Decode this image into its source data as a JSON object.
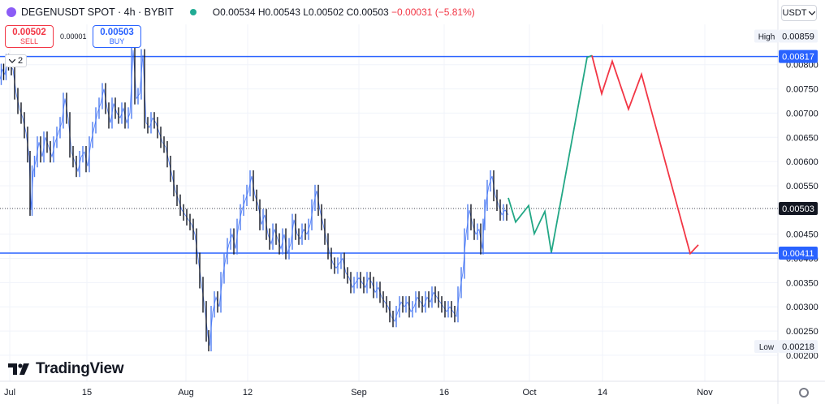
{
  "header": {
    "symbol": "DEGENUSDT SPOT · 4h · BYBIT",
    "ohlc_open": "O0.00534",
    "ohlc_high": "H0.00543",
    "ohlc_low": "L0.00502",
    "ohlc_close": "C0.00503",
    "ohlc_change": "−0.00031 (−5.81%)",
    "currency": "USDT",
    "symbol_icon": "degen-coin-icon",
    "status_icon": "market-open-dot-icon",
    "change_color": "#f23645"
  },
  "trade": {
    "sell_price": "0.00502",
    "sell_label": "SELL",
    "spread": "0.00001",
    "buy_price": "0.00503",
    "buy_label": "BUY"
  },
  "drawing_label": {
    "count": "2"
  },
  "branding": {
    "name": "TradingView"
  },
  "chart_data": {
    "type": "line",
    "description_series": "price",
    "x_ticks": [
      "Jul",
      "15",
      "Aug",
      "12",
      "Sep",
      "16",
      "Oct",
      "14",
      "Nov"
    ],
    "y_ticks": [
      "0.00800",
      "0.00750",
      "0.00700",
      "0.00650",
      "0.00600",
      "0.00550",
      "0.00450",
      "0.00400",
      "0.00350",
      "0.00300",
      "0.00250",
      "0.00200"
    ],
    "y_range": [
      0.0019,
      0.0089
    ],
    "price_labels": {
      "high_tag": "High",
      "high": "0.00859",
      "low_tag": "Low",
      "low": "0.00218",
      "resistance": "0.00817",
      "support": "0.00411",
      "last": "0.00503"
    },
    "horizontal_lines": [
      {
        "name": "resistance",
        "value": 0.00817,
        "color": "#2962ff"
      },
      {
        "name": "support",
        "value": 0.00411,
        "color": "#2962ff"
      }
    ],
    "last_price_line": {
      "value": 0.00503,
      "color": "#131722"
    },
    "price_path": [
      [
        0,
        0.0077
      ],
      [
        3,
        0.0079
      ],
      [
        6,
        0.0078
      ],
      [
        9,
        0.0081
      ],
      [
        12,
        0.008
      ],
      [
        16,
        0.0079
      ],
      [
        20,
        0.0074
      ],
      [
        24,
        0.0071
      ],
      [
        28,
        0.0069
      ],
      [
        32,
        0.0066
      ],
      [
        36,
        0.0061
      ],
      [
        38,
        0.005
      ],
      [
        41,
        0.0058
      ],
      [
        44,
        0.006
      ],
      [
        48,
        0.0064
      ],
      [
        52,
        0.0061
      ],
      [
        56,
        0.0065
      ],
      [
        60,
        0.0063
      ],
      [
        64,
        0.0061
      ],
      [
        68,
        0.0064
      ],
      [
        72,
        0.0066
      ],
      [
        76,
        0.0068
      ],
      [
        80,
        0.0073
      ],
      [
        84,
        0.0069
      ],
      [
        88,
        0.0062
      ],
      [
        92,
        0.006
      ],
      [
        96,
        0.0058
      ],
      [
        100,
        0.0061
      ],
      [
        104,
        0.0062
      ],
      [
        108,
        0.0059
      ],
      [
        112,
        0.0064
      ],
      [
        116,
        0.0067
      ],
      [
        120,
        0.007
      ],
      [
        124,
        0.0072
      ],
      [
        128,
        0.0075
      ],
      [
        132,
        0.0071
      ],
      [
        136,
        0.0068
      ],
      [
        140,
        0.0072
      ],
      [
        144,
        0.007
      ],
      [
        148,
        0.0069
      ],
      [
        152,
        0.0071
      ],
      [
        156,
        0.0068
      ],
      [
        160,
        0.007
      ],
      [
        164,
        0.0083
      ],
      [
        168,
        0.0073
      ],
      [
        172,
        0.0074
      ],
      [
        176,
        0.0082
      ],
      [
        180,
        0.0068
      ],
      [
        184,
        0.0067
      ],
      [
        188,
        0.0069
      ],
      [
        192,
        0.0068
      ],
      [
        196,
        0.0066
      ],
      [
        200,
        0.0064
      ],
      [
        204,
        0.0063
      ],
      [
        208,
        0.006
      ],
      [
        212,
        0.0057
      ],
      [
        216,
        0.0054
      ],
      [
        220,
        0.0052
      ],
      [
        224,
        0.005
      ],
      [
        228,
        0.0049
      ],
      [
        232,
        0.0048
      ],
      [
        236,
        0.0047
      ],
      [
        240,
        0.0045
      ],
      [
        244,
        0.004
      ],
      [
        248,
        0.0035
      ],
      [
        252,
        0.003
      ],
      [
        256,
        0.0024
      ],
      [
        258,
        0.0022
      ],
      [
        262,
        0.0029
      ],
      [
        266,
        0.0032
      ],
      [
        270,
        0.003
      ],
      [
        274,
        0.0036
      ],
      [
        278,
        0.004
      ],
      [
        282,
        0.0043
      ],
      [
        286,
        0.0045
      ],
      [
        290,
        0.0042
      ],
      [
        294,
        0.0047
      ],
      [
        298,
        0.005
      ],
      [
        302,
        0.0052
      ],
      [
        306,
        0.0054
      ],
      [
        310,
        0.0057
      ],
      [
        314,
        0.0053
      ],
      [
        318,
        0.0051
      ],
      [
        322,
        0.0047
      ],
      [
        326,
        0.0049
      ],
      [
        330,
        0.0045
      ],
      [
        334,
        0.0043
      ],
      [
        338,
        0.0046
      ],
      [
        342,
        0.0044
      ],
      [
        346,
        0.0042
      ],
      [
        350,
        0.0045
      ],
      [
        354,
        0.0041
      ],
      [
        358,
        0.0043
      ],
      [
        362,
        0.0048
      ],
      [
        366,
        0.0045
      ],
      [
        370,
        0.0044
      ],
      [
        374,
        0.0046
      ],
      [
        378,
        0.0045
      ],
      [
        382,
        0.0047
      ],
      [
        386,
        0.0051
      ],
      [
        390,
        0.0054
      ],
      [
        394,
        0.005
      ],
      [
        398,
        0.0047
      ],
      [
        402,
        0.0044
      ],
      [
        406,
        0.0041
      ],
      [
        410,
        0.0039
      ],
      [
        414,
        0.0038
      ],
      [
        418,
        0.0039
      ],
      [
        422,
        0.004
      ],
      [
        426,
        0.0037
      ],
      [
        430,
        0.0036
      ],
      [
        434,
        0.0034
      ],
      [
        438,
        0.0035
      ],
      [
        442,
        0.0036
      ],
      [
        446,
        0.0035
      ],
      [
        450,
        0.0034
      ],
      [
        454,
        0.0036
      ],
      [
        458,
        0.0035
      ],
      [
        462,
        0.0033
      ],
      [
        466,
        0.0034
      ],
      [
        470,
        0.0032
      ],
      [
        474,
        0.0031
      ],
      [
        478,
        0.003
      ],
      [
        482,
        0.0028
      ],
      [
        486,
        0.0027
      ],
      [
        490,
        0.0029
      ],
      [
        494,
        0.0031
      ],
      [
        498,
        0.003
      ],
      [
        502,
        0.0031
      ],
      [
        506,
        0.0029
      ],
      [
        510,
        0.003
      ],
      [
        514,
        0.0032
      ],
      [
        518,
        0.0031
      ],
      [
        522,
        0.003
      ],
      [
        526,
        0.0032
      ],
      [
        530,
        0.0031
      ],
      [
        534,
        0.0033
      ],
      [
        538,
        0.0032
      ],
      [
        542,
        0.0031
      ],
      [
        546,
        0.003
      ],
      [
        550,
        0.0029
      ],
      [
        554,
        0.003
      ],
      [
        558,
        0.0029
      ],
      [
        562,
        0.0028
      ],
      [
        566,
        0.0033
      ],
      [
        570,
        0.0037
      ],
      [
        574,
        0.0045
      ],
      [
        578,
        0.005
      ],
      [
        582,
        0.0047
      ],
      [
        586,
        0.0045
      ],
      [
        590,
        0.0046
      ],
      [
        594,
        0.0042
      ],
      [
        596,
        0.0047
      ],
      [
        598,
        0.0051
      ],
      [
        602,
        0.0055
      ],
      [
        606,
        0.0057
      ],
      [
        610,
        0.0053
      ],
      [
        614,
        0.0051
      ],
      [
        618,
        0.0049
      ],
      [
        622,
        0.005
      ],
      [
        626,
        0.0049
      ]
    ],
    "projection_up": [
      [
        626,
        0.00525
      ],
      [
        635,
        0.00475
      ],
      [
        651,
        0.00509
      ],
      [
        658,
        0.00451
      ],
      [
        671,
        0.00497
      ],
      [
        679,
        0.00412
      ],
      [
        723,
        0.00815
      ],
      [
        729,
        0.00819
      ]
    ],
    "projection_down": [
      [
        729,
        0.00819
      ],
      [
        741,
        0.0074
      ],
      [
        754,
        0.00807
      ],
      [
        774,
        0.00708
      ],
      [
        790,
        0.0078
      ],
      [
        850,
        0.0041
      ],
      [
        860,
        0.00428
      ]
    ],
    "projection_colors": {
      "up": "#22a785",
      "down": "#f23645"
    }
  }
}
